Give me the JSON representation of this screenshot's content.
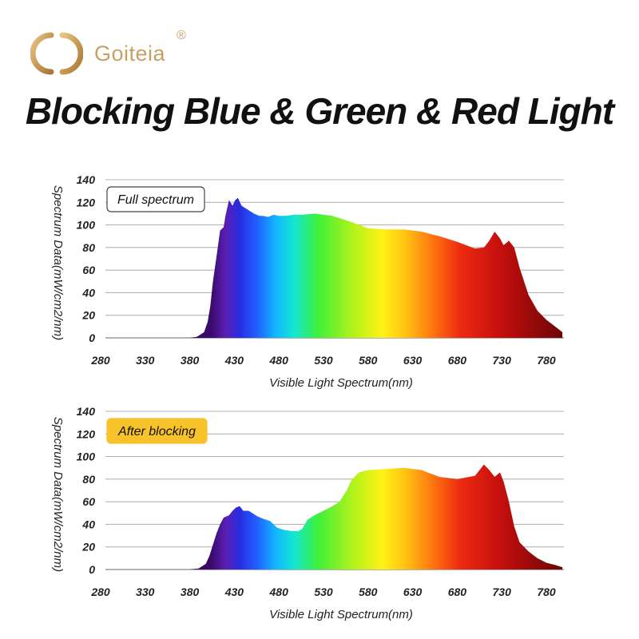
{
  "brand": {
    "name": "Goiteia",
    "registered_mark": "®",
    "color": "#c8a063"
  },
  "headline": "Blocking Blue & Green & Red Light",
  "chart_data": [
    {
      "type": "area",
      "badge": "Full spectrum",
      "badge_style": "outline",
      "xlabel": "Visible Light Spectrum(nm)",
      "ylabel": "Spectrum Data(mW/cm2/nm)",
      "xlim": [
        280,
        800
      ],
      "ylim": [
        0,
        140
      ],
      "xticks": [
        280,
        330,
        380,
        430,
        480,
        530,
        580,
        630,
        680,
        730,
        780
      ],
      "yticks": [
        0,
        20,
        40,
        60,
        80,
        100,
        120,
        140
      ],
      "grid": "horizontal",
      "fill": "spectrum-gradient",
      "x": [
        280,
        380,
        388,
        396,
        400,
        403,
        406,
        410,
        414,
        418,
        420,
        424,
        428,
        431,
        434,
        438,
        442,
        448,
        452,
        458,
        462,
        468,
        474,
        480,
        488,
        496,
        506,
        520,
        540,
        560,
        580,
        600,
        620,
        640,
        660,
        680,
        700,
        710,
        716,
        722,
        728,
        732,
        738,
        744,
        750,
        760,
        770,
        780,
        790,
        798
      ],
      "y": [
        0,
        0,
        1,
        5,
        14,
        28,
        50,
        72,
        95,
        98,
        108,
        122,
        117,
        122,
        124,
        117,
        115,
        112,
        110,
        108,
        108,
        107,
        109,
        108,
        108,
        109,
        109,
        110,
        108,
        103,
        97,
        96,
        96,
        94,
        90,
        85,
        79,
        80,
        86,
        94,
        88,
        82,
        86,
        80,
        62,
        38,
        24,
        16,
        10,
        5
      ]
    },
    {
      "type": "area",
      "badge": "After blocking",
      "badge_style": "filled",
      "xlabel": "Visible Light Spectrum(nm)",
      "ylabel": "Spectrum Data(mW/cm2/nm)",
      "xlim": [
        280,
        800
      ],
      "ylim": [
        0,
        140
      ],
      "xticks": [
        280,
        330,
        380,
        430,
        480,
        530,
        580,
        630,
        680,
        730,
        780
      ],
      "yticks": [
        0,
        20,
        40,
        60,
        80,
        100,
        120,
        140
      ],
      "grid": "horizontal",
      "fill": "spectrum-gradient",
      "x": [
        280,
        380,
        390,
        398,
        402,
        406,
        410,
        414,
        418,
        424,
        428,
        432,
        436,
        440,
        446,
        450,
        456,
        462,
        470,
        478,
        486,
        494,
        502,
        506,
        512,
        520,
        530,
        540,
        548,
        556,
        562,
        570,
        580,
        600,
        620,
        640,
        660,
        680,
        700,
        710,
        716,
        722,
        728,
        732,
        738,
        744,
        750,
        760,
        770,
        780,
        790,
        798
      ],
      "y": [
        0,
        0,
        1,
        5,
        12,
        22,
        32,
        40,
        46,
        48,
        52,
        55,
        56,
        52,
        52,
        50,
        47,
        45,
        43,
        37,
        35,
        34,
        34,
        36,
        44,
        48,
        52,
        56,
        60,
        70,
        80,
        86,
        88,
        89,
        90,
        88,
        82,
        80,
        83,
        93,
        88,
        82,
        86,
        78,
        60,
        38,
        24,
        16,
        10,
        6,
        4,
        2
      ]
    }
  ]
}
